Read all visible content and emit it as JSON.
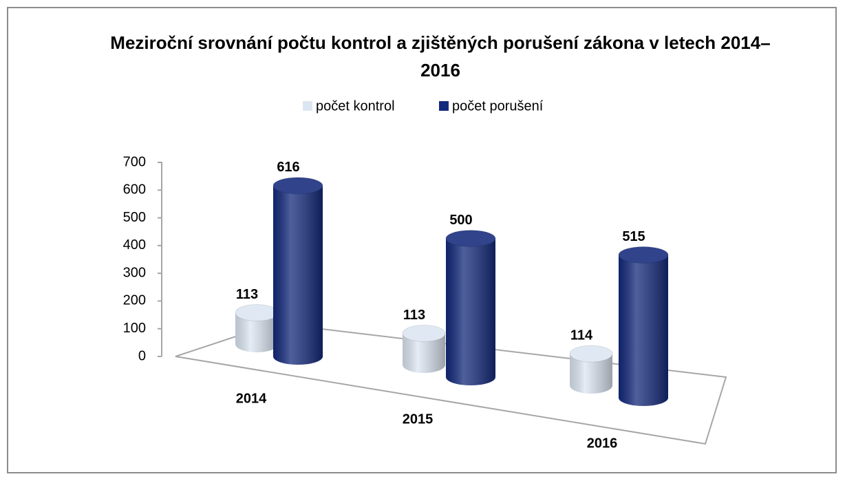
{
  "chart_data": {
    "type": "bar3d",
    "title": "Meziroční srovnání počtu kontrol a zjištěných porušení zákona v letech 2014–2016",
    "categories": [
      "2014",
      "2015",
      "2016"
    ],
    "series": [
      {
        "name": "počet kontrol",
        "color": "#dce6f2",
        "values": [
          113,
          113,
          114
        ]
      },
      {
        "name": "počet porušení",
        "color": "#142a7c",
        "values": [
          616,
          500,
          515
        ]
      }
    ],
    "ylim": [
      0,
      700
    ],
    "yticks": [
      0,
      100,
      200,
      300,
      400,
      500,
      600,
      700
    ],
    "legend": "top"
  }
}
